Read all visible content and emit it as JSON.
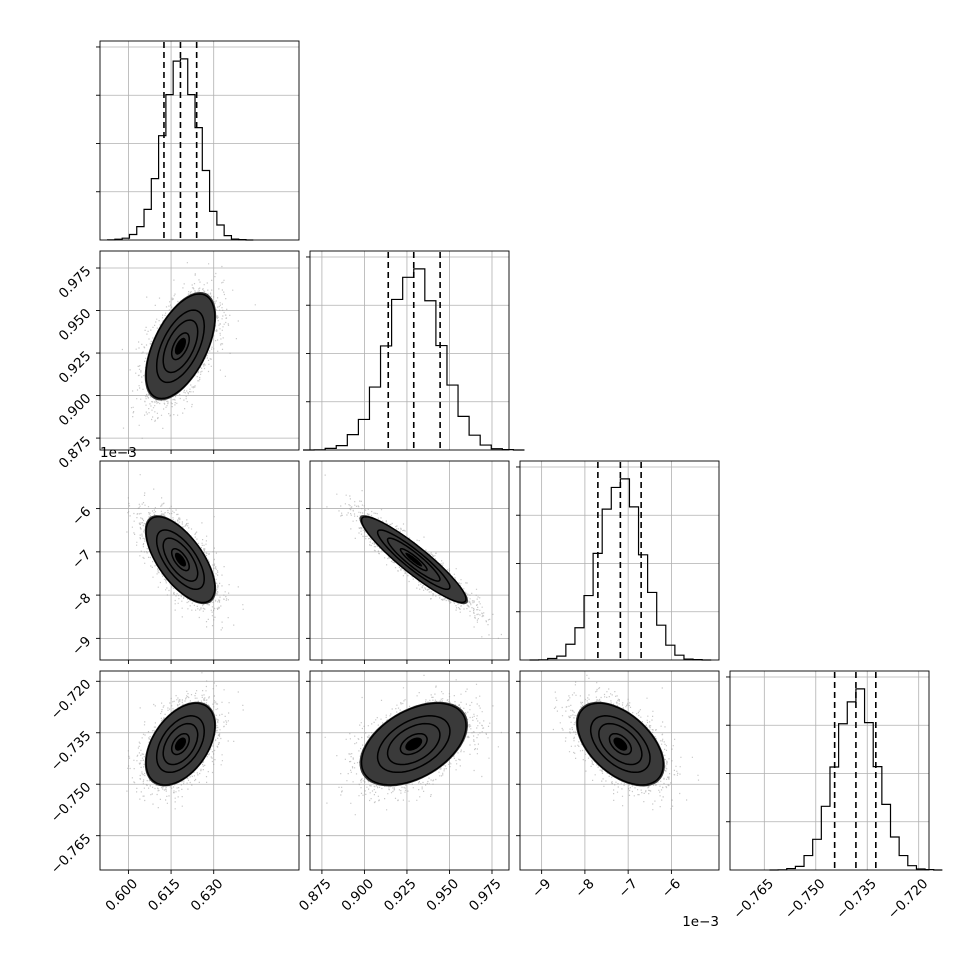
{
  "chart_data": {
    "type": "corner",
    "grid": true,
    "params": [
      {
        "range": [
          0.59,
          0.66
        ],
        "ticks": [
          0.6,
          0.615,
          0.63
        ],
        "tick_labels": [
          "0.600",
          "0.615",
          "0.630"
        ],
        "offset": "",
        "quantiles": [
          0.6125,
          0.6183,
          0.624
        ],
        "mean": 0.6183,
        "sd": 0.0061
      },
      {
        "range": [
          0.868,
          0.985
        ],
        "ticks": [
          0.875,
          0.9,
          0.925,
          0.95,
          0.975
        ],
        "tick_labels": [
          "0.875",
          "0.900",
          "0.925",
          "0.950",
          "0.975"
        ],
        "offset": "",
        "quantiles": [
          0.914,
          0.929,
          0.9445
        ],
        "mean": 0.929,
        "sd": 0.0155
      },
      {
        "range": [
          -9.5,
          -4.9
        ],
        "ticks": [
          -9,
          -8,
          -7,
          -6
        ],
        "tick_labels": [
          "−9",
          "−8",
          "−7",
          "−6"
        ],
        "offset": "1e−3",
        "quantiles": [
          -7.7,
          -7.18,
          -6.7
        ],
        "mean": -7.18,
        "sd": 0.5
      },
      {
        "range": [
          -0.775,
          -0.717
        ],
        "ticks": [
          -0.765,
          -0.75,
          -0.735,
          -0.72
        ],
        "tick_labels": [
          "−0.765",
          "−0.750",
          "−0.735",
          "−0.720"
        ],
        "offset": "",
        "quantiles": [
          -0.7445,
          -0.7383,
          -0.7325
        ],
        "mean": -0.7383,
        "sd": 0.006
      }
    ],
    "correlations": [
      {
        "i": 1,
        "j": 0,
        "r": 0.55
      },
      {
        "i": 2,
        "j": 0,
        "r": -0.65
      },
      {
        "i": 2,
        "j": 1,
        "r": -0.92
      },
      {
        "i": 3,
        "j": 0,
        "r": 0.45
      },
      {
        "i": 3,
        "j": 1,
        "r": 0.45
      },
      {
        "i": 3,
        "j": 2,
        "r": -0.5
      }
    ],
    "colors": {
      "hist": "#000000",
      "points": "#9a9a9a",
      "grid": "#b0b0b0"
    }
  }
}
